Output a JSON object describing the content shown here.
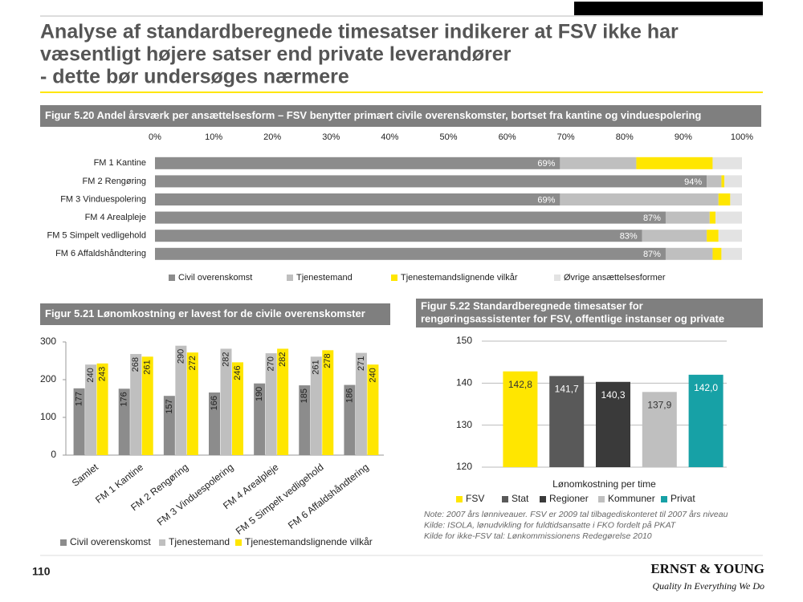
{
  "title_lines": [
    "Analyse af standardberegnede timesatser indikerer at FSV ikke har",
    "væsentligt højere satser end private leverandører",
    "- dette bør undersøges nærmere"
  ],
  "page_number": "110",
  "logo": "ERNST & YOUNG",
  "tagline": "Quality In Everything We Do",
  "chart_data": [
    {
      "type": "barh",
      "stacked": true,
      "title": "Figur 5.20 Andel årsværk per ansættelsesform – FSV benytter primært civile overenskomster, bortset fra kantine og vinduespolering",
      "categories": [
        "FM 1 Kantine",
        "FM 2 Rengøring",
        "FM 3 Vinduespolering",
        "FM 4 Arealpleje",
        "FM 5 Simpelt vedligehold",
        "FM 6 Affaldshåndtering"
      ],
      "series": [
        {
          "name": "Civil overenskomst",
          "color": "#8c8c8c",
          "values": [
            69,
            94,
            69,
            87,
            83,
            87
          ],
          "value_labels": [
            "69%",
            "94%",
            "69%",
            "87%",
            "83%",
            "87%"
          ]
        },
        {
          "name": "Tjenestemand",
          "color": "#bfbfbf",
          "values": [
            13,
            2.5,
            27,
            7.5,
            11,
            8
          ]
        },
        {
          "name": "Tjenestemandslignende vilkår",
          "color": "#ffe600",
          "values": [
            13,
            0.5,
            2,
            1,
            2,
            1.5
          ]
        },
        {
          "name": "Øvrige ansættelsesformer",
          "color": "#e3e3e3",
          "values": [
            5,
            3,
            2,
            4.5,
            4,
            3.5
          ]
        }
      ],
      "xlim": [
        0,
        100
      ],
      "xticks": [
        {
          "value": 0,
          "label": "0%"
        },
        {
          "value": 10,
          "label": "10%"
        },
        {
          "value": 20,
          "label": "20%"
        },
        {
          "value": 30,
          "label": "30%"
        },
        {
          "value": 40,
          "label": "40%"
        },
        {
          "value": 50,
          "label": "50%"
        },
        {
          "value": 60,
          "label": "60%"
        },
        {
          "value": 70,
          "label": "70%"
        },
        {
          "value": 80,
          "label": "80%"
        },
        {
          "value": 90,
          "label": "90%"
        },
        {
          "value": 100,
          "label": "100%"
        }
      ]
    },
    {
      "type": "bar",
      "title": "Figur 5.21 Lønomkostning er lavest for de civile overenskomster",
      "categories": [
        "Samlet",
        "FM 1 Kantine",
        "FM 2 Rengøring",
        "FM 3 Vinduespolering",
        "FM 4 Arealpleje",
        "FM 5 Simpelt vedligehold",
        "FM 6 Affaldshåndtering"
      ],
      "series": [
        {
          "name": "Civil overenskomst",
          "color": "#8c8c8c",
          "values": [
            177,
            176,
            157,
            166,
            190,
            185,
            186
          ]
        },
        {
          "name": "Tjenestemand",
          "color": "#bfbfbf",
          "values": [
            240,
            268,
            290,
            282,
            270,
            261,
            271
          ]
        },
        {
          "name": "Tjenestemandslignende vilkår",
          "color": "#ffe600",
          "values": [
            243,
            261,
            272,
            246,
            282,
            278,
            240
          ]
        }
      ],
      "ylim": [
        0,
        300
      ],
      "yticks": [
        0,
        100,
        200,
        300
      ]
    },
    {
      "type": "bar",
      "title": [
        "Figur 5.22 Standardberegnede timesatser for",
        "rengøringsassistenter for FSV, offentlige instanser og private"
      ],
      "categories": [
        "FSV",
        "Stat",
        "Regioner",
        "Kommuner",
        "Privat"
      ],
      "values": [
        142.8,
        141.7,
        140.3,
        137.9,
        142.0
      ],
      "value_labels": [
        "142,8",
        "141,7",
        "140,3",
        "137,9",
        "142,0"
      ],
      "colors": [
        "#ffe600",
        "#595959",
        "#3a3a3a",
        "#bfbfbf",
        "#17a1a6"
      ],
      "x_label": "Lønomkostning per time",
      "ylim": [
        120,
        150
      ],
      "yticks": [
        120,
        130,
        140,
        150
      ],
      "grid": true,
      "notes": [
        "Note: 2007 års lønniveauer. FSV er 2009 tal tilbagediskonteret til 2007 års niveau",
        "Kilde: ISOLA, lønudvikling for fuldtidsansatte i FKO fordelt på PKAT",
        "Kilde  for ikke-FSV tal: Lønkommissionens Redegørelse 2010"
      ]
    }
  ]
}
